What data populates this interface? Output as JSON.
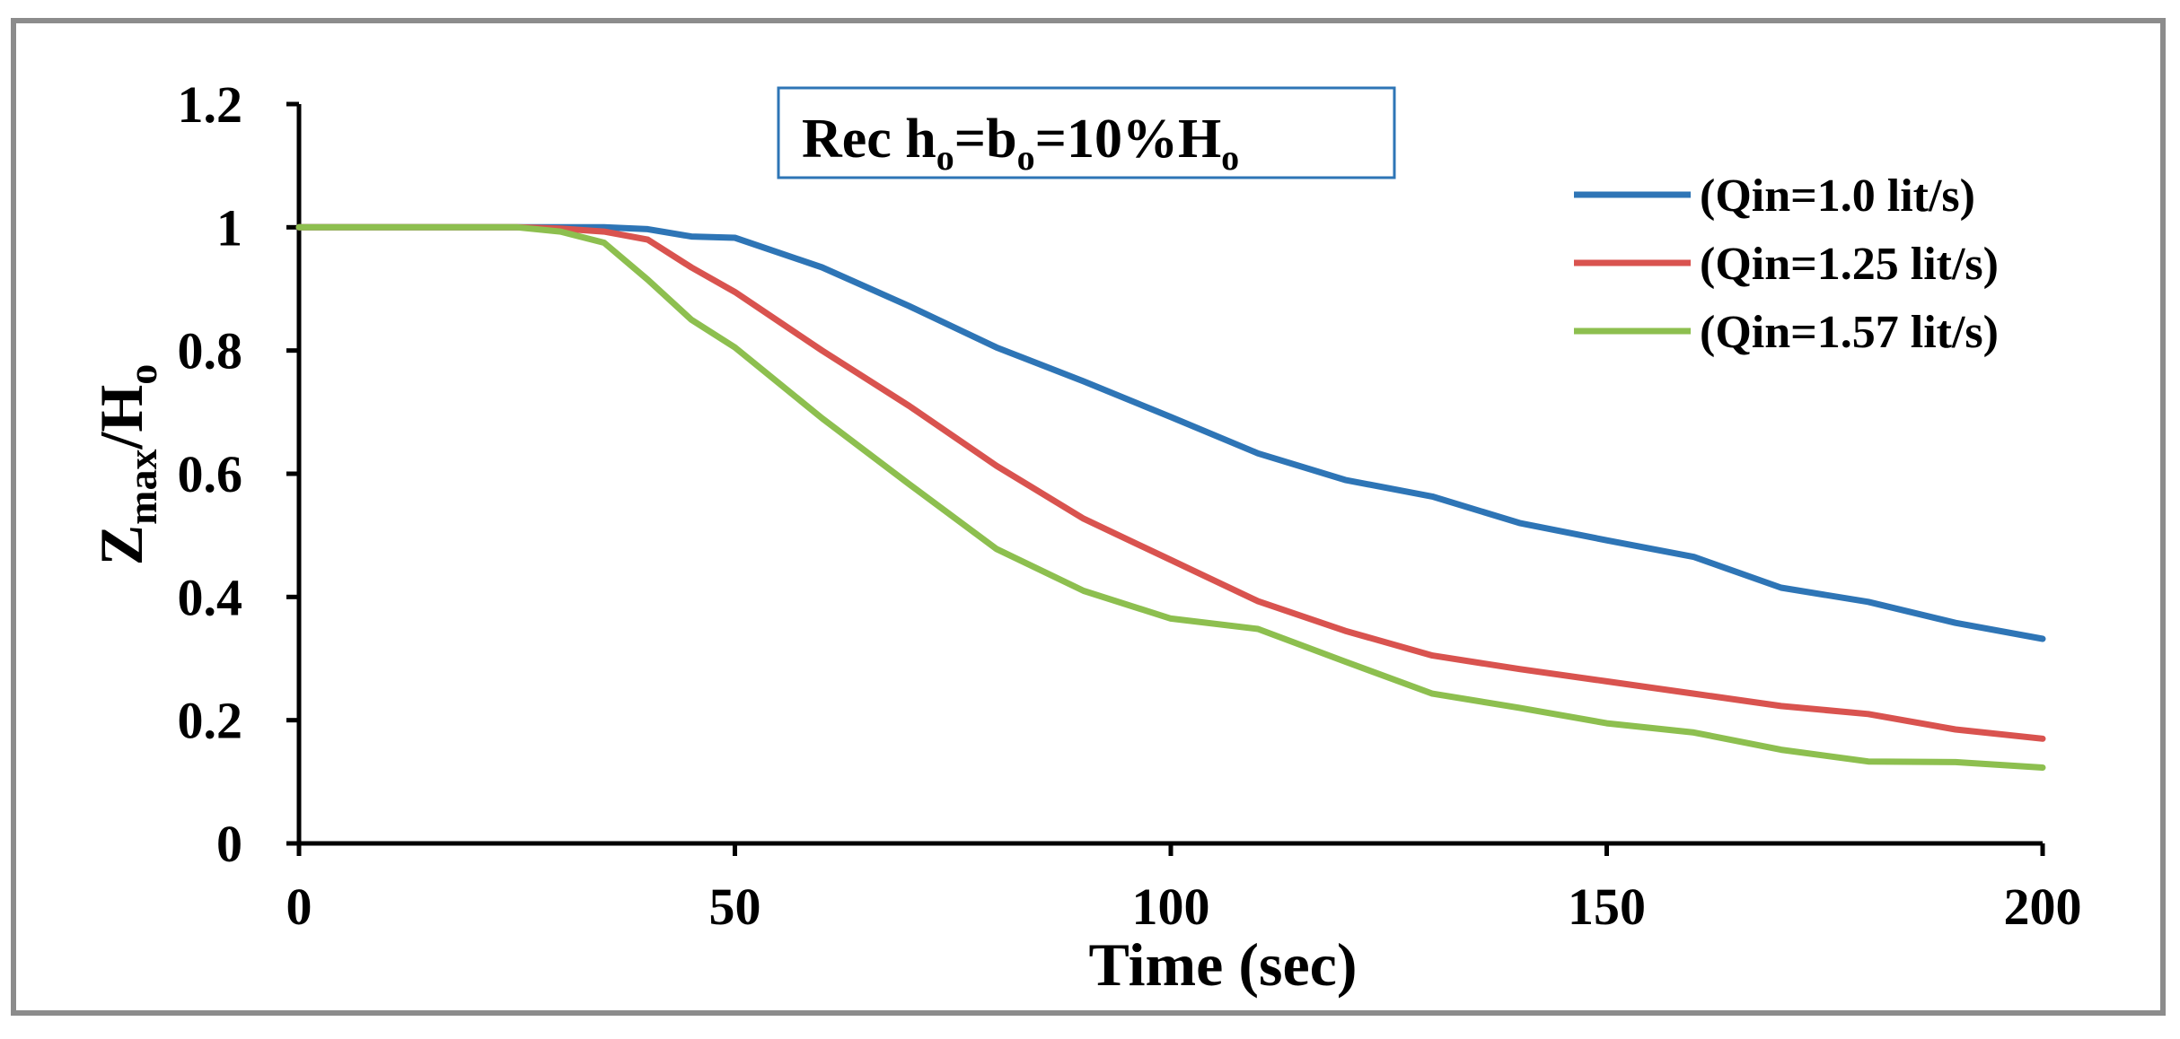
{
  "chart_data": {
    "type": "line",
    "title": "",
    "annotation": {
      "main": "Rec h",
      "sub1": "o",
      "eq1": "=b",
      "sub2": "o",
      "eq2": "=10%H",
      "sub3": "o"
    },
    "xlabel": "Time (sec)",
    "ylabel": {
      "main": "Z",
      "sub": "max",
      "rest": "/H",
      "sub2": "o"
    },
    "xlim": [
      0,
      200
    ],
    "ylim": [
      0,
      1.2
    ],
    "xticks": [
      0,
      50,
      100,
      150,
      200
    ],
    "xtick_labels": [
      "0",
      "50",
      "100",
      "150",
      "200"
    ],
    "yticks": [
      0,
      0.2,
      0.4,
      0.6,
      0.8,
      1,
      1.2
    ],
    "ytick_labels": [
      "0",
      "0.2",
      "0.4",
      "0.6",
      "0.8",
      "1",
      "1.2"
    ],
    "grid": false,
    "legend_position": "top-right",
    "series": [
      {
        "name": "(Qin=1.0 lit/s)",
        "color": "#2e75b6",
        "x": [
          0,
          10,
          20,
          30,
          35,
          40,
          45,
          50,
          60,
          70,
          80,
          90,
          100,
          110,
          120,
          130,
          140,
          150,
          160,
          170,
          180,
          190,
          200
        ],
        "y": [
          1,
          1,
          1,
          1,
          1,
          0.997,
          0.985,
          0.983,
          0.935,
          0.872,
          0.805,
          0.75,
          0.692,
          0.633,
          0.59,
          0.563,
          0.52,
          0.492,
          0.465,
          0.415,
          0.392,
          0.358,
          0.332
        ]
      },
      {
        "name": "(Qin=1.25 lit/s)",
        "color": "#d9534f",
        "x": [
          0,
          10,
          20,
          25,
          30,
          35,
          40,
          45,
          50,
          60,
          70,
          80,
          90,
          100,
          110,
          120,
          130,
          140,
          150,
          160,
          170,
          180,
          190,
          200
        ],
        "y": [
          1,
          1,
          1,
          1,
          0.998,
          0.993,
          0.98,
          0.935,
          0.895,
          0.8,
          0.71,
          0.613,
          0.527,
          0.46,
          0.393,
          0.345,
          0.305,
          0.283,
          0.263,
          0.243,
          0.223,
          0.21,
          0.185,
          0.17
        ]
      },
      {
        "name": "(Qin=1.57 lit/s)",
        "color": "#8dbf4f",
        "x": [
          0,
          10,
          20,
          25,
          30,
          35,
          40,
          45,
          50,
          60,
          70,
          80,
          90,
          100,
          110,
          120,
          130,
          140,
          150,
          160,
          170,
          180,
          190,
          200
        ],
        "y": [
          1,
          1,
          1,
          1,
          0.993,
          0.975,
          0.915,
          0.85,
          0.805,
          0.69,
          0.583,
          0.478,
          0.41,
          0.365,
          0.348,
          0.295,
          0.243,
          0.22,
          0.195,
          0.18,
          0.152,
          0.133,
          0.132,
          0.123
        ]
      }
    ]
  }
}
